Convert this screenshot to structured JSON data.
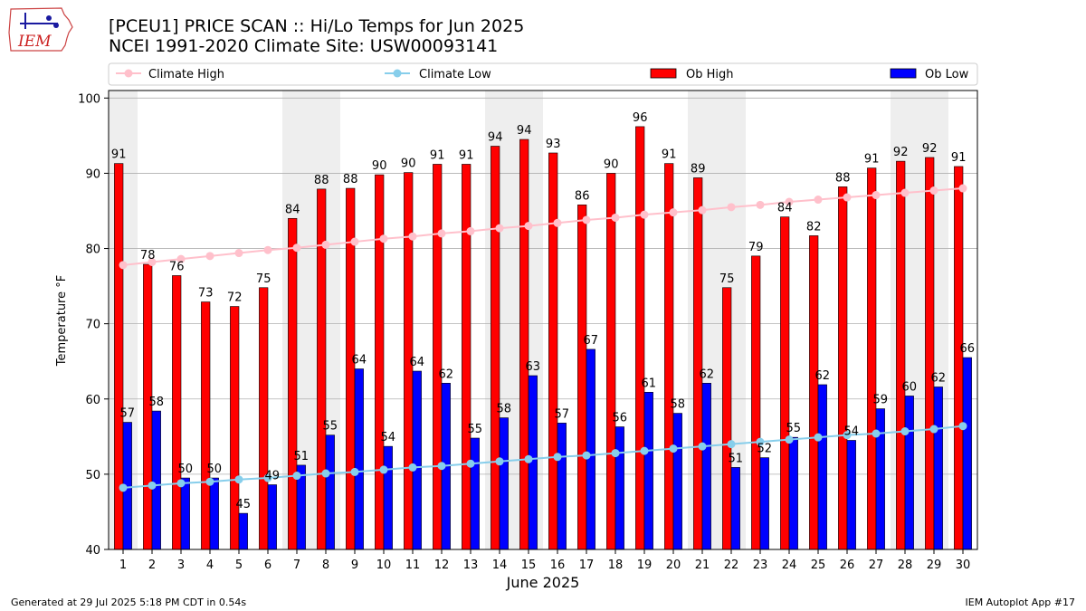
{
  "header": {
    "title_line1": "[PCEU1] PRICE SCAN :: Hi/Lo Temps for Jun 2025",
    "title_line2": "NCEI 1991-2020 Climate Site: USW00093141"
  },
  "logo": {
    "text": "IEM"
  },
  "footer": {
    "left": "Generated at 29 Jul 2025 5:18 PM CDT in 0.54s",
    "right": "IEM Autoplot App #17"
  },
  "colors": {
    "ob_high": "#ff0000",
    "ob_low": "#0000ff",
    "climate_high": "#ffc0cb",
    "climate_low": "#87ceeb",
    "weekend_shade": "#eeeeee",
    "grid": "#b0b0b0"
  },
  "chart_data": {
    "type": "bar",
    "xlabel": "June 2025",
    "ylabel": "Temperature °F",
    "ylim": [
      40,
      101
    ],
    "yticks": [
      40,
      50,
      60,
      70,
      80,
      90,
      100
    ],
    "grid": "horizontal",
    "legend_position": "top",
    "legend": [
      "Climate High",
      "Climate Low",
      "Ob High",
      "Ob Low"
    ],
    "shaded_days": [
      1,
      7,
      8,
      14,
      15,
      21,
      22,
      28,
      29
    ],
    "categories": [
      "1",
      "2",
      "3",
      "4",
      "5",
      "6",
      "7",
      "8",
      "9",
      "10",
      "11",
      "12",
      "13",
      "14",
      "15",
      "16",
      "17",
      "18",
      "19",
      "20",
      "21",
      "22",
      "23",
      "24",
      "25",
      "26",
      "27",
      "28",
      "29",
      "30"
    ],
    "series": [
      {
        "name": "Ob High",
        "kind": "bar",
        "color": "#ff0000",
        "values": [
          91.3,
          77.9,
          76.4,
          72.9,
          72.3,
          74.8,
          84.0,
          87.9,
          88.0,
          89.8,
          90.1,
          91.2,
          91.2,
          93.6,
          94.5,
          92.7,
          85.8,
          90.0,
          96.2,
          91.3,
          89.4,
          74.8,
          79.0,
          84.2,
          81.7,
          88.2,
          90.7,
          91.6,
          92.1,
          90.9
        ],
        "labels": [
          "91",
          "78",
          "76",
          "73",
          "72",
          "75",
          "84",
          "88",
          "88",
          "90",
          "90",
          "91",
          "91",
          "94",
          "94",
          "93",
          "86",
          "90",
          "96",
          "91",
          "89",
          "75",
          "79",
          "84",
          "82",
          "88",
          "91",
          "92",
          "92",
          "91"
        ]
      },
      {
        "name": "Ob Low",
        "kind": "bar",
        "color": "#0000ff",
        "values": [
          56.9,
          58.4,
          49.5,
          49.5,
          44.8,
          48.6,
          51.2,
          55.2,
          64.0,
          53.7,
          63.7,
          62.1,
          54.8,
          57.5,
          63.1,
          56.8,
          66.6,
          56.3,
          60.9,
          58.1,
          62.1,
          50.9,
          52.2,
          54.9,
          61.9,
          54.5,
          58.7,
          60.4,
          61.6,
          65.5
        ],
        "labels": [
          "57",
          "58",
          "50",
          "50",
          "45",
          "49",
          "51",
          "55",
          "64",
          "54",
          "64",
          "62",
          "55",
          "58",
          "63",
          "57",
          "67",
          "56",
          "61",
          "58",
          "62",
          "51",
          "52",
          "55",
          "62",
          "54",
          "59",
          "60",
          "62",
          "66"
        ]
      },
      {
        "name": "Climate High",
        "kind": "line",
        "color": "#ffc0cb",
        "values": [
          77.8,
          78.2,
          78.6,
          79.0,
          79.4,
          79.8,
          80.1,
          80.5,
          80.9,
          81.3,
          81.6,
          82.0,
          82.3,
          82.7,
          83.0,
          83.4,
          83.8,
          84.1,
          84.5,
          84.8,
          85.1,
          85.5,
          85.8,
          86.2,
          86.5,
          86.8,
          87.1,
          87.4,
          87.7,
          88.0
        ]
      },
      {
        "name": "Climate Low",
        "kind": "line",
        "color": "#87ceeb",
        "values": [
          48.2,
          48.5,
          48.8,
          49.0,
          49.3,
          49.5,
          49.8,
          50.1,
          50.3,
          50.6,
          50.9,
          51.1,
          51.4,
          51.7,
          52.0,
          52.3,
          52.5,
          52.8,
          53.1,
          53.4,
          53.7,
          54.0,
          54.3,
          54.6,
          54.9,
          55.2,
          55.4,
          55.7,
          56.0,
          56.4
        ]
      }
    ]
  }
}
